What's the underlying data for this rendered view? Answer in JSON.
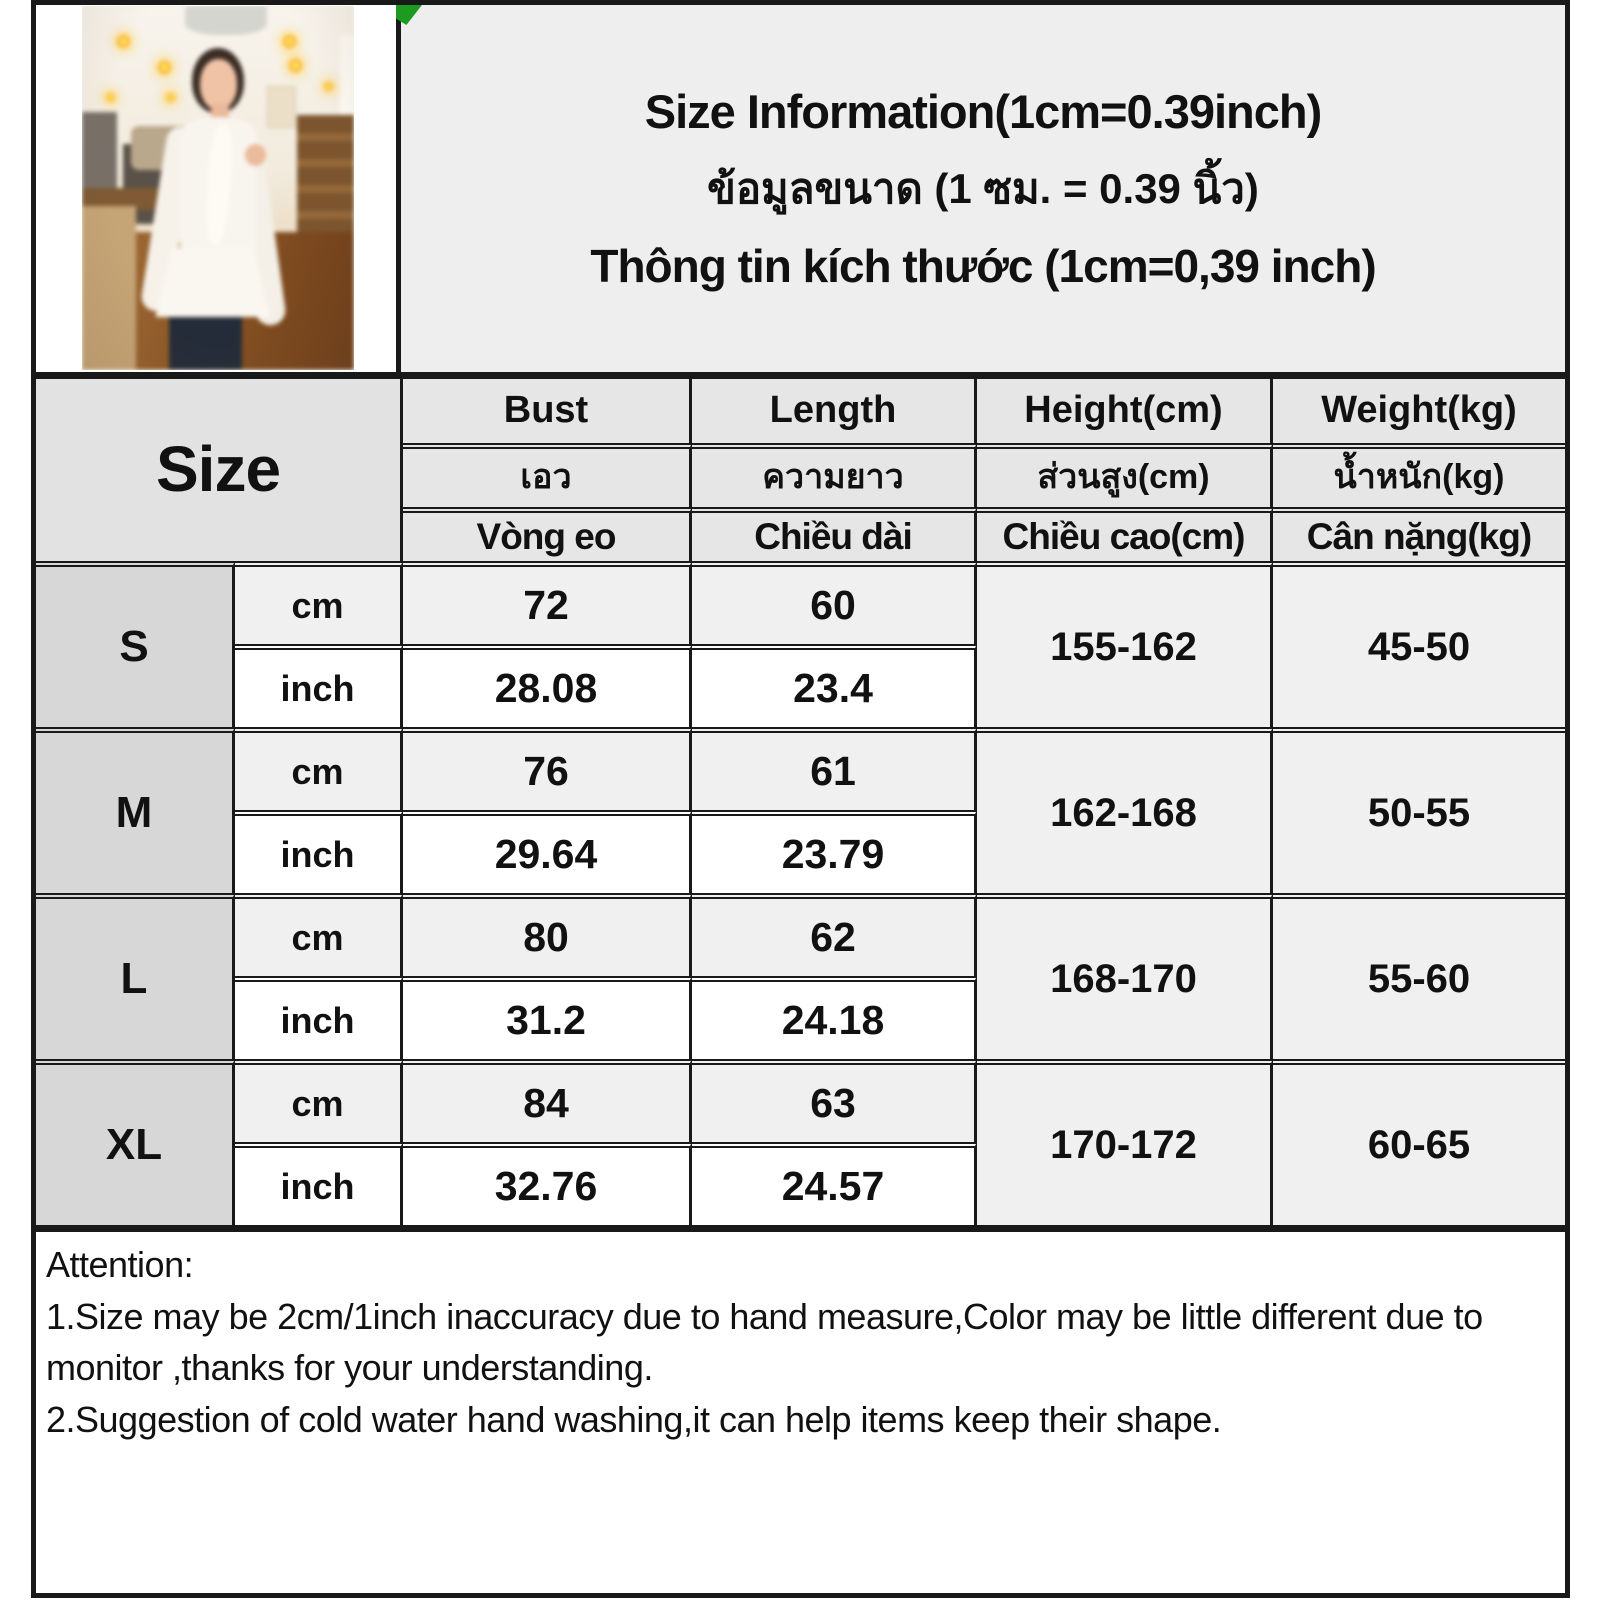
{
  "title": {
    "line_en": "Size Information(1cm=0.39inch)",
    "line_th": "ข้อมูลขนาด (1 ซม. = 0.39 นิ้ว)",
    "line_vi": "Thông tin kích thước (1cm=0,39 inch)"
  },
  "photo": {
    "description": "Model wearing a white ruffled cold-shoulder blouse with neck bow, standing in a café with pendant lights, wooden counter and shelves"
  },
  "size_table": {
    "corner_label": "Size",
    "columns": [
      {
        "en": "Bust",
        "th": "เอว",
        "vi": "Vòng eo"
      },
      {
        "en": "Length",
        "th": "ความยาว",
        "vi": "Chiều dài"
      },
      {
        "en": "Height(cm)",
        "th": "ส่วนสูง(cm)",
        "vi": "Chiều cao(cm)"
      },
      {
        "en": "Weight(kg)",
        "th": "น้ำหนัก(kg)",
        "vi": "Cân nặng(kg)"
      }
    ],
    "unit_labels": {
      "cm": "cm",
      "inch": "inch"
    },
    "rows": [
      {
        "size": "S",
        "bust_cm": "72",
        "length_cm": "60",
        "bust_in": "28.08",
        "length_in": "23.4",
        "height": "155-162",
        "weight": "45-50"
      },
      {
        "size": "M",
        "bust_cm": "76",
        "length_cm": "61",
        "bust_in": "29.64",
        "length_in": "23.79",
        "height": "162-168",
        "weight": "50-55"
      },
      {
        "size": "L",
        "bust_cm": "80",
        "length_cm": "62",
        "bust_in": "31.2",
        "length_in": "24.18",
        "height": "168-170",
        "weight": "55-60"
      },
      {
        "size": "XL",
        "bust_cm": "84",
        "length_cm": "63",
        "bust_in": "32.76",
        "length_in": "24.57",
        "height": "170-172",
        "weight": "60-65"
      }
    ]
  },
  "attention": {
    "heading": "Attention:",
    "note1": "1.Size may be 2cm/1inch inaccuracy due to hand measure,Color may be little different due to monitor ,thanks for your understanding.",
    "note2": "2.Suggestion of cold water hand washing,it can help items keep their shape."
  },
  "colors": {
    "marker_green": "#1d9b21",
    "border": "#191919",
    "title_panel_bg": "#eeeeee",
    "header_bg": "#e6e6e6",
    "size_column_bg": "#d7d7d7",
    "cm_row_bg": "#f0f0f0",
    "inch_row_bg": "#ffffff"
  }
}
